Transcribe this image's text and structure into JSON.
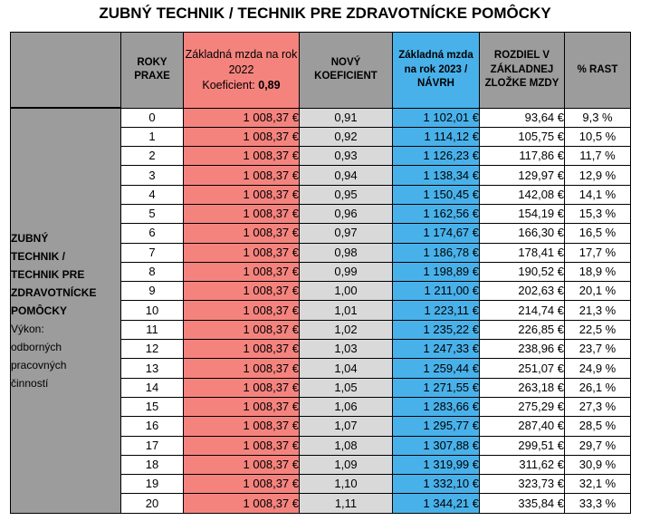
{
  "title": "ZUBNÝ TECHNIK / TECHNIK PRE ZDRAVOTNÍCKE POMÔCKY",
  "headers": {
    "years": "ROKY PRAXE",
    "base2022_line1": "Základná mzda na rok 2022",
    "base2022_coef_label": "Koeficient:",
    "base2022_coef_value": "0,89",
    "new_coef": "NOVÝ KOEFICIENT",
    "base2023": "Základná mzda na rok 2023  /  NÁVRH",
    "diff": "ROZDIEL V ZÁKLADNEJ ZLOŽKE MZDY",
    "pct": "% RAST"
  },
  "side": {
    "bold_lines": [
      "ZUBNÝ",
      "TECHNIK /",
      "TECHNIK PRE",
      "ZDRAVOTNÍCKE",
      "POMÔCKY"
    ],
    "normal_lines": [
      "Výkon:",
      "odborných",
      "pracovných",
      "činností"
    ]
  },
  "rows": [
    {
      "years": "0",
      "base2022": "1 008,37 €",
      "coef": "0,91",
      "base2023": "1 102,01 €",
      "diff": "93,64 €",
      "pct": "9,3 %"
    },
    {
      "years": "1",
      "base2022": "1 008,37 €",
      "coef": "0,92",
      "base2023": "1 114,12 €",
      "diff": "105,75 €",
      "pct": "10,5 %"
    },
    {
      "years": "2",
      "base2022": "1 008,37 €",
      "coef": "0,93",
      "base2023": "1 126,23 €",
      "diff": "117,86 €",
      "pct": "11,7 %"
    },
    {
      "years": "3",
      "base2022": "1 008,37 €",
      "coef": "0,94",
      "base2023": "1 138,34 €",
      "diff": "129,97 €",
      "pct": "12,9 %"
    },
    {
      "years": "4",
      "base2022": "1 008,37 €",
      "coef": "0,95",
      "base2023": "1 150,45 €",
      "diff": "142,08 €",
      "pct": "14,1 %"
    },
    {
      "years": "5",
      "base2022": "1 008,37 €",
      "coef": "0,96",
      "base2023": "1 162,56 €",
      "diff": "154,19 €",
      "pct": "15,3 %"
    },
    {
      "years": "6",
      "base2022": "1 008,37 €",
      "coef": "0,97",
      "base2023": "1 174,67 €",
      "diff": "166,30 €",
      "pct": "16,5 %"
    },
    {
      "years": "7",
      "base2022": "1 008,37 €",
      "coef": "0,98",
      "base2023": "1 186,78 €",
      "diff": "178,41 €",
      "pct": "17,7 %"
    },
    {
      "years": "8",
      "base2022": "1 008,37 €",
      "coef": "0,99",
      "base2023": "1 198,89 €",
      "diff": "190,52 €",
      "pct": "18,9 %"
    },
    {
      "years": "9",
      "base2022": "1 008,37 €",
      "coef": "1,00",
      "base2023": "1 211,00 €",
      "diff": "202,63 €",
      "pct": "20,1 %"
    },
    {
      "years": "10",
      "base2022": "1 008,37 €",
      "coef": "1,01",
      "base2023": "1 223,11 €",
      "diff": "214,74 €",
      "pct": "21,3 %"
    },
    {
      "years": "11",
      "base2022": "1 008,37 €",
      "coef": "1,02",
      "base2023": "1 235,22 €",
      "diff": "226,85 €",
      "pct": "22,5 %"
    },
    {
      "years": "12",
      "base2022": "1 008,37 €",
      "coef": "1,03",
      "base2023": "1 247,33 €",
      "diff": "238,96 €",
      "pct": "23,7 %"
    },
    {
      "years": "13",
      "base2022": "1 008,37 €",
      "coef": "1,04",
      "base2023": "1 259,44 €",
      "diff": "251,07 €",
      "pct": "24,9 %"
    },
    {
      "years": "14",
      "base2022": "1 008,37 €",
      "coef": "1,05",
      "base2023": "1 271,55 €",
      "diff": "263,18 €",
      "pct": "26,1 %"
    },
    {
      "years": "15",
      "base2022": "1 008,37 €",
      "coef": "1,06",
      "base2023": "1 283,66 €",
      "diff": "275,29 €",
      "pct": "27,3 %"
    },
    {
      "years": "16",
      "base2022": "1 008,37 €",
      "coef": "1,07",
      "base2023": "1 295,77 €",
      "diff": "287,40 €",
      "pct": "28,5 %"
    },
    {
      "years": "17",
      "base2022": "1 008,37 €",
      "coef": "1,08",
      "base2023": "1 307,88 €",
      "diff": "299,51 €",
      "pct": "29,7 %"
    },
    {
      "years": "18",
      "base2022": "1 008,37 €",
      "coef": "1,09",
      "base2023": "1 319,99 €",
      "diff": "311,62 €",
      "pct": "30,9 %"
    },
    {
      "years": "19",
      "base2022": "1 008,37 €",
      "coef": "1,10",
      "base2023": "1 332,10 €",
      "diff": "323,73 €",
      "pct": "32,1 %"
    },
    {
      "years": "20",
      "base2022": "1 008,37 €",
      "coef": "1,11",
      "base2023": "1 344,21 €",
      "diff": "335,84 €",
      "pct": "33,3 %"
    }
  ],
  "colors": {
    "header_gray": "#9c9c9c",
    "base2022_red": "#f4837e",
    "coef_gray": "#d9d9d9",
    "base2023_blue": "#49b1ea"
  }
}
